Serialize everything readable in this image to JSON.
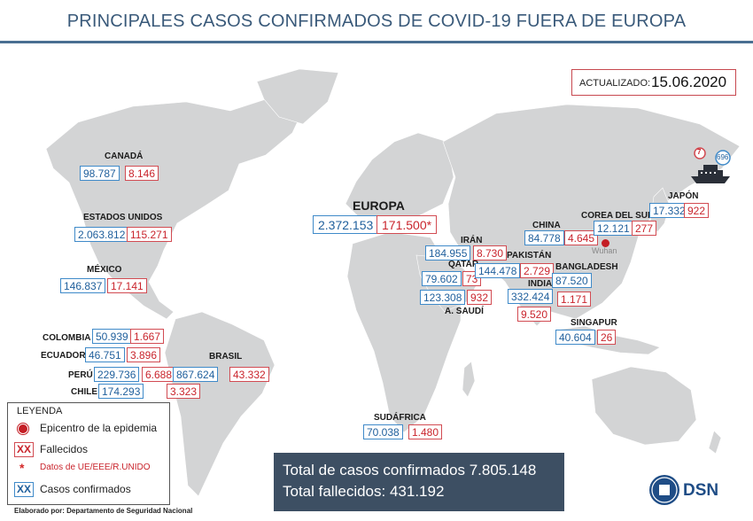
{
  "header": {
    "title": "PRINCIPALES CASOS CONFIRMADOS DE COVID-19 FUERA DE EUROPA"
  },
  "update": {
    "label": "ACTUALIZADO:",
    "date": "15.06.2020"
  },
  "regions": {
    "canada": {
      "name": "CANADÁ",
      "confirmed": "98.787",
      "deaths": "8.146"
    },
    "usa": {
      "name": "ESTADOS UNIDOS",
      "confirmed": "2.063.812",
      "deaths": "115.271"
    },
    "mexico": {
      "name": "MÉXICO",
      "confirmed": "146.837",
      "deaths": "17.141"
    },
    "colombia": {
      "name": "COLOMBIA",
      "confirmed": "50.939",
      "deaths": "1.667"
    },
    "ecuador": {
      "name": "ECUADOR",
      "confirmed": "46.751",
      "deaths": "3.896"
    },
    "peru": {
      "name": "PERÚ",
      "confirmed": "229.736",
      "deaths": "6.688"
    },
    "chile": {
      "name": "CHILE",
      "confirmed": "174.293",
      "deaths": "3.323"
    },
    "brasil": {
      "name": "BRASIL",
      "confirmed": "867.624",
      "deaths": "43.332"
    },
    "europa": {
      "name": "EUROPA",
      "confirmed": "2.372.153",
      "deaths": "171.500*"
    },
    "iran": {
      "name": "IRÁN",
      "confirmed": "184.955",
      "deaths": "8.730"
    },
    "qatar": {
      "name": "QATAR",
      "confirmed": "79.602",
      "deaths": "73"
    },
    "saudi": {
      "name": "A. SAUDÍ",
      "confirmed": "123.308",
      "deaths": "932"
    },
    "pakistan": {
      "name": "PAKISTÁN",
      "confirmed": "144.478",
      "deaths": "2.729"
    },
    "india": {
      "name": "INDIA",
      "confirmed": "332.424",
      "deaths": "9.520"
    },
    "bangladesh": {
      "name": "BANGLADESH",
      "confirmed": "87.520",
      "deaths": "1.171"
    },
    "china": {
      "name": "CHINA",
      "confirmed": "84.778",
      "deaths": "4.645"
    },
    "korea": {
      "name": "COREA DEL SUR",
      "confirmed": "12.121",
      "deaths": "277"
    },
    "japan": {
      "name": "JAPÓN",
      "confirmed": "17.332",
      "deaths": "922"
    },
    "singapore": {
      "name": "SINGAPUR",
      "confirmed": "40.604",
      "deaths": "26"
    },
    "southafrica": {
      "name": "SUDÁFRICA",
      "confirmed": "70.038",
      "deaths": "1.480"
    }
  },
  "epicenter": {
    "name": "Wuhan"
  },
  "ship": {
    "deaths": "7",
    "confirmed": "696"
  },
  "legend": {
    "title": "LEYENDA",
    "epicenter": "Epicentro de la epidemia",
    "deaths_symbol": "XX",
    "deaths": "Fallecidos",
    "eu_star": "*",
    "eu": "Datos de UE/EEE/R.UNIDO",
    "confirmed_symbol": "XX",
    "confirmed": "Casos confirmados"
  },
  "totals": {
    "confirmed": "Total de casos confirmados 7.805.148",
    "deaths": "Total fallecidos: 431.192"
  },
  "credit": "Elaborado por: Departamento de Seguridad Nacional",
  "logo": {
    "text": "DSN"
  },
  "colors": {
    "confirmed": "#3f8ac9",
    "deaths": "#d24b52",
    "land": "#d3d4d5",
    "totals_bg": "#3d4f63"
  }
}
